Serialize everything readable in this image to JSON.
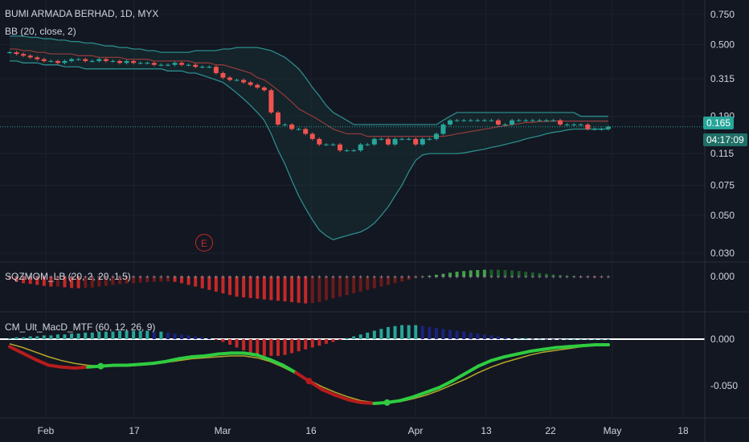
{
  "header": {
    "symbol_line": "BUMI ARMADA BERHAD, 1D, MYX",
    "bb_label": "BB (20, close, 2)",
    "sqz_label": "SQZMOM_LB (20, 2, 20, 1.5)",
    "macd_label": "CM_Ult_MacD_MTF (60, 12, 26, 9)"
  },
  "price_tag": {
    "value": "0.165",
    "countdown": "04:17:09"
  },
  "marker": {
    "label": "E"
  },
  "colors": {
    "background": "#131722",
    "grid": "#1e222d",
    "up": "#26a69a",
    "down": "#ef5350",
    "bb_band": "#2b8c8c",
    "bb_basis": "#8b3a3a",
    "price_line": "#26a69a",
    "sqz_red": "#c62828",
    "sqz_darkred": "#6b1a1a",
    "sqz_green": "#43a047",
    "macd_red": "#b71c1c",
    "macd_green": "#2ecc40",
    "macd_signal": "#b5a82a",
    "hist_teal": "#26a69a",
    "hist_blue": "#1a237e",
    "hist_red": "#c62828"
  },
  "chart_data": [
    {
      "type": "candlestick",
      "title": "BUMI ARMADA BERHAD, 1D, MYX",
      "y_scale": "log",
      "y_ticks": [
        "0.750",
        "0.500",
        "0.315",
        "0.190",
        "0.115",
        "0.075",
        "0.050",
        "0.030"
      ],
      "x_ticks": [
        "Feb",
        "17",
        "Mar",
        "16",
        "Apr",
        "13",
        "22",
        "May",
        "18"
      ],
      "last_price": 0.165,
      "close_series": [
        0.45,
        0.44,
        0.43,
        0.42,
        0.41,
        0.4,
        0.4,
        0.39,
        0.4,
        0.41,
        0.41,
        0.4,
        0.4,
        0.41,
        0.4,
        0.4,
        0.39,
        0.4,
        0.39,
        0.39,
        0.39,
        0.38,
        0.38,
        0.38,
        0.39,
        0.38,
        0.38,
        0.37,
        0.37,
        0.37,
        0.34,
        0.32,
        0.31,
        0.31,
        0.3,
        0.29,
        0.28,
        0.27,
        0.2,
        0.17,
        0.17,
        0.16,
        0.16,
        0.15,
        0.14,
        0.13,
        0.13,
        0.13,
        0.12,
        0.12,
        0.12,
        0.13,
        0.13,
        0.14,
        0.14,
        0.13,
        0.14,
        0.14,
        0.14,
        0.13,
        0.14,
        0.14,
        0.15,
        0.17,
        0.18,
        0.18,
        0.18,
        0.18,
        0.18,
        0.18,
        0.18,
        0.17,
        0.17,
        0.18,
        0.18,
        0.18,
        0.18,
        0.18,
        0.18,
        0.18,
        0.17,
        0.17,
        0.17,
        0.17,
        0.16,
        0.16,
        0.16,
        0.165
      ],
      "bb_upper": [
        0.56,
        0.56,
        0.56,
        0.55,
        0.55,
        0.54,
        0.54,
        0.53,
        0.53,
        0.52,
        0.52,
        0.51,
        0.51,
        0.5,
        0.49,
        0.49,
        0.48,
        0.48,
        0.47,
        0.47,
        0.46,
        0.46,
        0.45,
        0.45,
        0.45,
        0.45,
        0.45,
        0.46,
        0.46,
        0.46,
        0.46,
        0.47,
        0.47,
        0.48,
        0.48,
        0.48,
        0.48,
        0.47,
        0.46,
        0.44,
        0.42,
        0.39,
        0.36,
        0.32,
        0.28,
        0.25,
        0.22,
        0.2,
        0.19,
        0.18,
        0.17,
        0.17,
        0.17,
        0.17,
        0.17,
        0.17,
        0.17,
        0.17,
        0.17,
        0.17,
        0.17,
        0.17,
        0.17,
        0.18,
        0.19,
        0.2,
        0.2,
        0.2,
        0.2,
        0.2,
        0.2,
        0.2,
        0.2,
        0.2,
        0.2,
        0.2,
        0.2,
        0.2,
        0.2,
        0.2,
        0.2,
        0.2,
        0.2,
        0.19,
        0.19,
        0.19,
        0.19,
        0.19
      ],
      "bb_lower": [
        0.4,
        0.4,
        0.39,
        0.39,
        0.39,
        0.38,
        0.38,
        0.38,
        0.37,
        0.37,
        0.37,
        0.36,
        0.36,
        0.36,
        0.36,
        0.36,
        0.36,
        0.36,
        0.36,
        0.36,
        0.36,
        0.36,
        0.36,
        0.35,
        0.35,
        0.35,
        0.34,
        0.34,
        0.33,
        0.32,
        0.31,
        0.3,
        0.28,
        0.26,
        0.24,
        0.22,
        0.2,
        0.18,
        0.15,
        0.12,
        0.1,
        0.08,
        0.065,
        0.055,
        0.047,
        0.041,
        0.038,
        0.036,
        0.037,
        0.038,
        0.039,
        0.04,
        0.042,
        0.045,
        0.05,
        0.056,
        0.065,
        0.075,
        0.09,
        0.105,
        0.113,
        0.115,
        0.115,
        0.115,
        0.115,
        0.115,
        0.116,
        0.118,
        0.12,
        0.122,
        0.125,
        0.127,
        0.13,
        0.133,
        0.136,
        0.14,
        0.143,
        0.146,
        0.15,
        0.153,
        0.155,
        0.158,
        0.16,
        0.16,
        0.16,
        0.16,
        0.16,
        0.16
      ],
      "bb_basis": [
        0.47,
        0.47,
        0.46,
        0.46,
        0.45,
        0.45,
        0.44,
        0.44,
        0.44,
        0.44,
        0.43,
        0.43,
        0.43,
        0.42,
        0.42,
        0.42,
        0.42,
        0.41,
        0.41,
        0.41,
        0.41,
        0.4,
        0.4,
        0.4,
        0.4,
        0.4,
        0.4,
        0.39,
        0.39,
        0.39,
        0.38,
        0.38,
        0.37,
        0.36,
        0.35,
        0.34,
        0.32,
        0.31,
        0.29,
        0.27,
        0.25,
        0.23,
        0.21,
        0.2,
        0.19,
        0.18,
        0.17,
        0.16,
        0.155,
        0.15,
        0.15,
        0.15,
        0.145,
        0.145,
        0.145,
        0.145,
        0.145,
        0.145,
        0.145,
        0.145,
        0.145,
        0.145,
        0.145,
        0.145,
        0.147,
        0.15,
        0.152,
        0.155,
        0.157,
        0.16,
        0.162,
        0.165,
        0.167,
        0.17,
        0.172,
        0.175,
        0.175,
        0.177,
        0.177,
        0.178,
        0.178,
        0.178,
        0.178,
        0.178,
        0.178,
        0.178,
        0.178,
        0.178
      ]
    },
    {
      "type": "bar",
      "title": "SQZMOM_LB (20, 2, 20, 1.5)",
      "y_ticks": [
        "0.000"
      ],
      "values": [
        -0.01,
        -0.015,
        -0.02,
        -0.022,
        -0.025,
        -0.028,
        -0.03,
        -0.03,
        -0.032,
        -0.034,
        -0.035,
        -0.034,
        -0.033,
        -0.03,
        -0.028,
        -0.025,
        -0.023,
        -0.021,
        -0.02,
        -0.018,
        -0.017,
        -0.016,
        -0.015,
        -0.015,
        -0.016,
        -0.02,
        -0.025,
        -0.03,
        -0.035,
        -0.04,
        -0.045,
        -0.05,
        -0.055,
        -0.06,
        -0.062,
        -0.064,
        -0.066,
        -0.068,
        -0.07,
        -0.072,
        -0.074,
        -0.076,
        -0.078,
        -0.08,
        -0.079,
        -0.076,
        -0.07,
        -0.065,
        -0.06,
        -0.055,
        -0.05,
        -0.045,
        -0.04,
        -0.035,
        -0.03,
        -0.025,
        -0.02,
        -0.015,
        -0.01,
        -0.005,
        -0.002,
        0.002,
        0.005,
        0.008,
        0.011,
        0.014,
        0.016,
        0.018,
        0.019,
        0.02,
        0.02,
        0.02,
        0.019,
        0.018,
        0.016,
        0.014,
        0.012,
        0.01,
        0.008,
        0.006,
        0.004,
        0.002,
        0.001,
        -0.001,
        -0.002,
        -0.003,
        -0.003,
        -0.003
      ]
    },
    {
      "type": "line",
      "title": "CM_Ult_MacD_MTF (60, 12, 26, 9)",
      "y_ticks": [
        "0.000",
        "-0.050"
      ],
      "macd": [
        -0.008,
        -0.015,
        -0.022,
        -0.028,
        -0.03,
        -0.031,
        -0.03,
        -0.029,
        -0.028,
        -0.028,
        -0.027,
        -0.026,
        -0.024,
        -0.021,
        -0.019,
        -0.018,
        -0.016,
        -0.015,
        -0.015,
        -0.017,
        -0.022,
        -0.028,
        -0.036,
        -0.045,
        -0.054,
        -0.06,
        -0.065,
        -0.068,
        -0.069,
        -0.068,
        -0.066,
        -0.062,
        -0.057,
        -0.052,
        -0.045,
        -0.037,
        -0.029,
        -0.023,
        -0.019,
        -0.016,
        -0.013,
        -0.011,
        -0.009,
        -0.008,
        -0.007,
        -0.006,
        -0.006
      ],
      "signal": [
        -0.005,
        -0.009,
        -0.014,
        -0.019,
        -0.023,
        -0.026,
        -0.028,
        -0.029,
        -0.029,
        -0.029,
        -0.028,
        -0.027,
        -0.025,
        -0.023,
        -0.021,
        -0.02,
        -0.019,
        -0.018,
        -0.018,
        -0.02,
        -0.024,
        -0.03,
        -0.037,
        -0.044,
        -0.051,
        -0.057,
        -0.062,
        -0.066,
        -0.068,
        -0.068,
        -0.067,
        -0.064,
        -0.06,
        -0.055,
        -0.049,
        -0.043,
        -0.036,
        -0.03,
        -0.025,
        -0.021,
        -0.017,
        -0.014,
        -0.012,
        -0.01,
        -0.008,
        -0.007,
        -0.006
      ],
      "histogram": [
        0.001,
        0.002,
        0.002,
        0.003,
        0.003,
        0.004,
        0.004,
        0.005,
        0.005,
        0.006,
        0.006,
        0.007,
        0.007,
        0.008,
        0.008,
        0.008,
        0.009,
        0.009,
        0.009,
        0.009,
        0.009,
        0.008,
        0.008,
        0.007,
        0.006,
        0.005,
        0.004,
        0.003,
        0.002,
        0.001,
        -0.001,
        -0.003,
        -0.006,
        -0.009,
        -0.012,
        -0.015,
        -0.017,
        -0.018,
        -0.018,
        -0.018,
        -0.017,
        -0.015,
        -0.013,
        -0.011,
        -0.009,
        -0.007,
        -0.005,
        -0.003,
        -0.001,
        0.001,
        0.003,
        0.005,
        0.007,
        0.009,
        0.011,
        0.013,
        0.014,
        0.015,
        0.015,
        0.015,
        0.014,
        0.013,
        0.012,
        0.011,
        0.01,
        0.009,
        0.008,
        0.007,
        0.006,
        0.005,
        0.004,
        0.003,
        0.002,
        0.001,
        0.001,
        0.001,
        0.0005,
        0.0005,
        0.0003,
        0.0002,
        0.0001,
        0.0001,
        0.0001,
        0.0001,
        0.0001,
        0.0001,
        0.0001,
        0.0001
      ]
    }
  ]
}
